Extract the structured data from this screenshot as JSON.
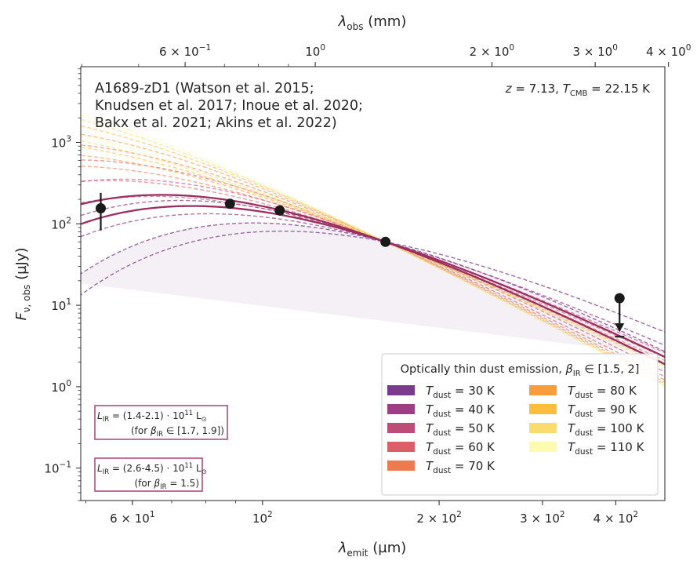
{
  "chart_data": {
    "type": "line",
    "x_scale": "log",
    "y_scale": "log",
    "xlim": [
      49,
      485
    ],
    "ylim": [
      0.04,
      8500
    ],
    "xlabel": "λemit (µm)",
    "ylabel": "Fν, obs (µJy)",
    "top_xlabel": "λobs (mm)",
    "redshift": 7.13,
    "bottom_ticks": [
      {
        "value": 60,
        "mant": "6 × 10",
        "exp": "1"
      },
      {
        "value": 100,
        "mant": "10",
        "exp": "2"
      },
      {
        "value": 200,
        "mant": "2 × 10",
        "exp": "2"
      },
      {
        "value": 300,
        "mant": "3 × 10",
        "exp": "2"
      },
      {
        "value": 400,
        "mant": "4 × 10",
        "exp": "2"
      }
    ],
    "top_ticks": [
      {
        "value": 0.6,
        "mant": "6 × 10",
        "exp": "−1"
      },
      {
        "value": 1,
        "mant": "10",
        "exp": "0"
      },
      {
        "value": 2,
        "mant": "2 × 10",
        "exp": "0"
      },
      {
        "value": 3,
        "mant": "3 × 10",
        "exp": "0"
      },
      {
        "value": 4,
        "mant": "4 × 10",
        "exp": "0"
      }
    ],
    "y_ticks": [
      {
        "value": 0.1,
        "mant": "10",
        "exp": "−1"
      },
      {
        "value": 1,
        "mant": "10",
        "exp": "0"
      },
      {
        "value": 10,
        "mant": "10",
        "exp": "1"
      },
      {
        "value": 100,
        "mant": "10",
        "exp": "2"
      },
      {
        "value": 1000,
        "mant": "10",
        "exp": "3"
      }
    ],
    "title_lines": [
      "A1689-zD1 (Watson et al. 2015;",
      "Knudsen et al. 2017; Inoue et al. 2020;",
      "Bakx et al. 2021; Akins et al. 2022)"
    ],
    "redshift_label": {
      "z_text": "z = 7.13, ",
      "t_main": "T",
      "t_sub": "CMB",
      "t_value": " = 22.15 K"
    },
    "data_points": [
      {
        "x": 53,
        "y": 155,
        "yerr_low": 83,
        "yerr_high": 240
      },
      {
        "x": 88,
        "y": 176
      },
      {
        "x": 107,
        "y": 146
      },
      {
        "x": 162,
        "y": 60
      },
      {
        "x": 406,
        "y": 12.2,
        "upper_limit": true,
        "limit_to": 4.8
      }
    ],
    "anchor": {
      "x": 162,
      "y": 60
    },
    "series": [
      {
        "name": "T_dust = 30 K",
        "t_dust": 30,
        "color": "#7b3a8c"
      },
      {
        "name": "T_dust = 40 K",
        "t_dust": 40,
        "color": "#9e3f86"
      },
      {
        "name": "T_dust = 50 K",
        "t_dust": 50,
        "color": "#bd4d78"
      },
      {
        "name": "T_dust = 60 K",
        "t_dust": 60,
        "color": "#da5f66"
      },
      {
        "name": "T_dust = 70 K",
        "t_dust": 70,
        "color": "#ee7b4f"
      },
      {
        "name": "T_dust = 80 K",
        "t_dust": 80,
        "color": "#f89c3c"
      },
      {
        "name": "T_dust = 90 K",
        "t_dust": 90,
        "color": "#fbbd3b"
      },
      {
        "name": "T_dust = 100 K",
        "t_dust": 100,
        "color": "#f8dc6e"
      },
      {
        "name": "T_dust = 110 K",
        "t_dust": 110,
        "color": "#fcfbb0"
      }
    ],
    "beta_values": [
      1.5,
      2.0
    ],
    "legend": {
      "title_text": "Optically thin dust emission, ",
      "title_beta": "β",
      "title_beta_sub": "IR",
      "title_range": " ∈ [1.5, 2]",
      "placement": "lower-right",
      "entry_main": "T",
      "entry_sub": "dust",
      "entries": [
        {
          "value": " = 30 K",
          "color": "#7b3a8c"
        },
        {
          "value": " = 40 K",
          "color": "#9e3f86"
        },
        {
          "value": " = 50 K",
          "color": "#bd4d78"
        },
        {
          "value": " = 60 K",
          "color": "#da5f66"
        },
        {
          "value": " = 70 K",
          "color": "#ee7b4f"
        },
        {
          "value": " = 80 K",
          "color": "#f89c3c"
        },
        {
          "value": " = 90 K",
          "color": "#fbbd3b"
        },
        {
          "value": " = 100 K",
          "color": "#f8dc6e"
        },
        {
          "value": " = 110 K",
          "color": "#fcfbb0"
        }
      ]
    },
    "lir_boxes": [
      {
        "line1": "L_IR = (1.4-2.1) · 10^11 L⊙",
        "line2": "(for β_IR ∈ [1.7, 1.9])",
        "l1_main": "L",
        "l1_sub": "IR",
        "l1_val": " = (1.4-2.1) · 10",
        "l1_exp": "11",
        "l1_unit": " L",
        "l1_unit_sub": "⊙",
        "l2_pre": "(for ",
        "l2_beta": "β",
        "l2_sub": "IR",
        "l2_val": " ∈ [1.7, 1.9])",
        "color": "#b04d7a"
      },
      {
        "line1": "L_IR = (2.6-4.5) · 10^11 L⊙",
        "line2": "(for β_IR = 1.5)",
        "l1_main": "L",
        "l1_sub": "IR",
        "l1_val": " = (2.6-4.5) · 10",
        "l1_exp": "11",
        "l1_unit": " L",
        "l1_unit_sub": "⊙",
        "l2_pre": "(for ",
        "l2_beta": "β",
        "l2_sub": "IR",
        "l2_val": " = 1.5)",
        "color": "#b04d7a"
      }
    ],
    "best_fit_color": "#9b2d5f",
    "grid": false
  }
}
